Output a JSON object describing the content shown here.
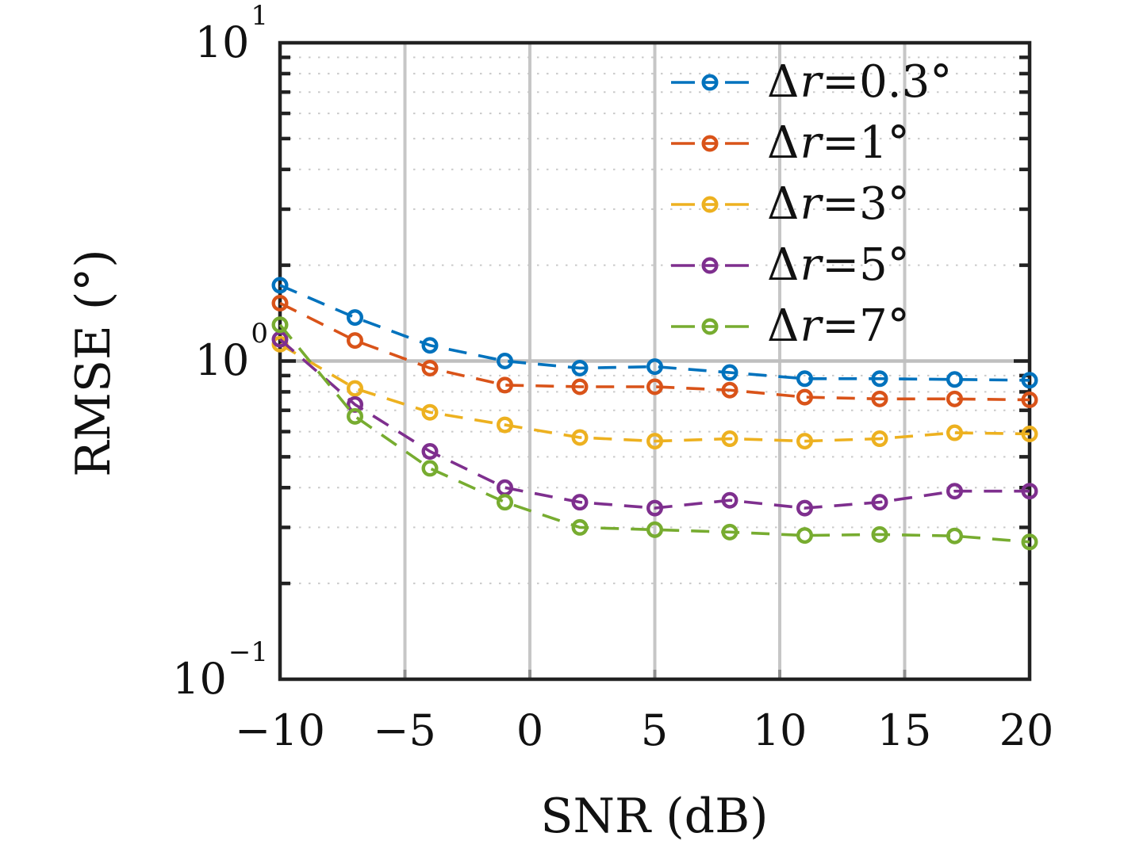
{
  "figure": {
    "background": "#ffffff",
    "frame_color": "#222222",
    "grid_major_color": "#c6c6c6",
    "grid_ref_line_color": "#bfbfbf",
    "grid_minor_color": "#c9c9c9",
    "xtick_mark_color": "#8f8f8f",
    "ytick_mark_color": "#222222",
    "text_color": "#111111"
  },
  "chart_data": {
    "type": "line",
    "title": "",
    "xlabel": "SNR (dB)",
    "ylabel": "RMSE (°)",
    "legend_position": "top-right-inside",
    "legend_border": false,
    "x_axis": {
      "min": -10,
      "max": 20,
      "ticks": [
        -10,
        -5,
        0,
        5,
        10,
        15,
        20
      ],
      "tick_labels": [
        "−10",
        "−5",
        "0",
        "5",
        "10",
        "15",
        "20"
      ],
      "grid_ticks": [
        -5,
        0,
        5,
        10,
        15
      ],
      "grid": true
    },
    "y_axis": {
      "scale": "log",
      "min": 0.1,
      "max": 10,
      "tick_values": [
        10,
        1,
        0.1
      ],
      "tick_labels": [
        {
          "base": "10",
          "exp": "1"
        },
        {
          "base": "10",
          "exp": "0"
        },
        {
          "base": "10",
          "exp": "−1"
        }
      ],
      "minor_multipliers": [
        2,
        3,
        4,
        5,
        6,
        7,
        8,
        9
      ],
      "major_grid_value": 1,
      "grid": true
    },
    "x": [
      -10,
      -7,
      -4,
      -1,
      2,
      5,
      8,
      11,
      14,
      17,
      20
    ],
    "series": [
      {
        "name": "Δr=0.3°",
        "label_parts": {
          "prefix": "Δ",
          "variable": "r",
          "suffix": "=0.3°"
        },
        "color": "#0072BD",
        "marker": "o",
        "linestyle": "dashed",
        "values": [
          1.73,
          1.37,
          1.12,
          1.0,
          0.95,
          0.96,
          0.92,
          0.88,
          0.88,
          0.875,
          0.87
        ]
      },
      {
        "name": "Δr=1°",
        "label_parts": {
          "prefix": "Δ",
          "variable": "r",
          "suffix": "=1°"
        },
        "color": "#D95319",
        "marker": "o",
        "linestyle": "dashed",
        "values": [
          1.52,
          1.16,
          0.95,
          0.84,
          0.83,
          0.83,
          0.81,
          0.77,
          0.76,
          0.76,
          0.755
        ]
      },
      {
        "name": "Δr=3°",
        "label_parts": {
          "prefix": "Δ",
          "variable": "r",
          "suffix": "=3°"
        },
        "color": "#EDB120",
        "marker": "o",
        "linestyle": "dashed",
        "values": [
          1.13,
          0.82,
          0.69,
          0.63,
          0.575,
          0.56,
          0.57,
          0.56,
          0.57,
          0.595,
          0.59
        ]
      },
      {
        "name": "Δr=5°",
        "label_parts": {
          "prefix": "Δ",
          "variable": "r",
          "suffix": "=5°"
        },
        "color": "#7E2F8E",
        "marker": "o",
        "linestyle": "dashed",
        "values": [
          1.17,
          0.73,
          0.52,
          0.4,
          0.36,
          0.345,
          0.365,
          0.345,
          0.36,
          0.39,
          0.39
        ]
      },
      {
        "name": "Δr=7°",
        "label_parts": {
          "prefix": "Δ",
          "variable": "r",
          "suffix": "=7°"
        },
        "color": "#77AC30",
        "marker": "o",
        "linestyle": "dashed",
        "values": [
          1.3,
          0.67,
          0.46,
          0.36,
          0.3,
          0.295,
          0.29,
          0.283,
          0.285,
          0.282,
          0.27
        ]
      }
    ]
  }
}
